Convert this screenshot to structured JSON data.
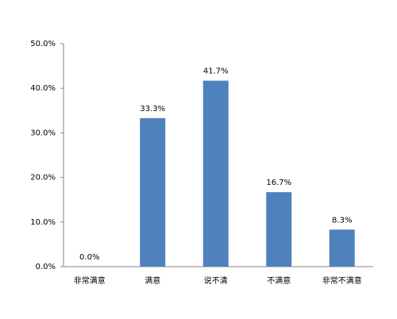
{
  "chart_data": {
    "type": "bar",
    "categories": [
      "非常满意",
      "满意",
      "说不清",
      "不满意",
      "非常不满意"
    ],
    "values": [
      0,
      33.3,
      41.7,
      16.7,
      8.3
    ],
    "value_labels": [
      "0.0%",
      "33.3%",
      "41.7%",
      "16.7%",
      "8.3%"
    ],
    "color": "#4f81bd",
    "ylim": [
      0,
      50
    ],
    "yticks": [
      {
        "value": 0,
        "label": "0.0%"
      },
      {
        "value": 10,
        "label": "10.0%"
      },
      {
        "value": 20,
        "label": "20.0%"
      },
      {
        "value": 30,
        "label": "30.0%"
      },
      {
        "value": 40,
        "label": "40.0%"
      },
      {
        "value": 50,
        "label": "50.0%"
      }
    ],
    "grid": false
  }
}
